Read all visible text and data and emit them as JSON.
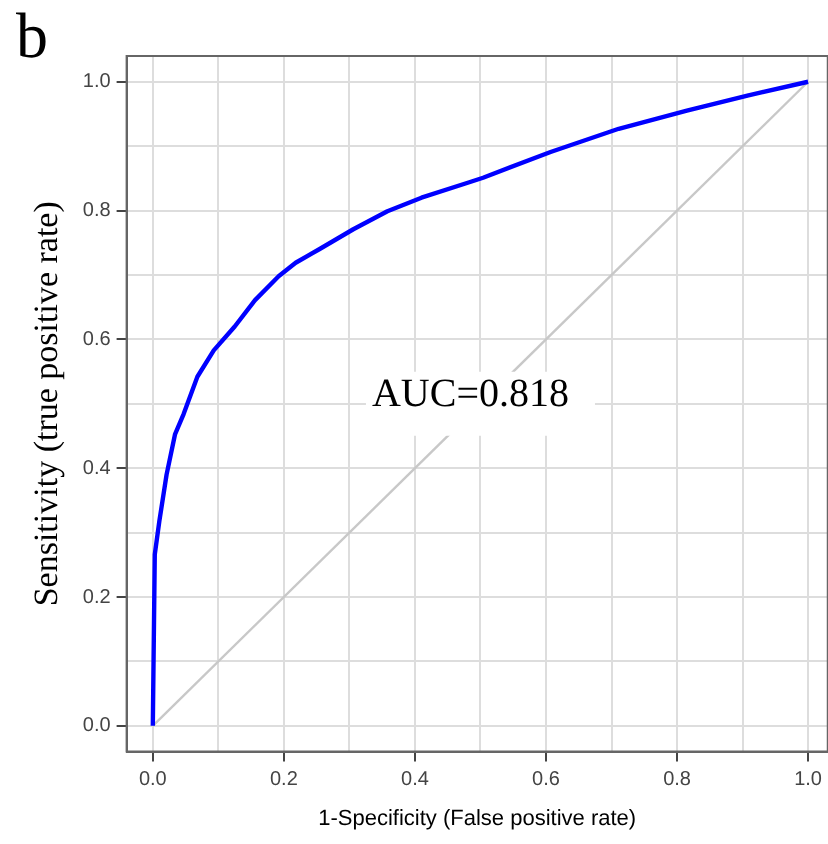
{
  "chart_data": {
    "type": "line",
    "xlabel": "1-Specificity (False positive rate)",
    "ylabel": "Sensitivity (true positive rate)",
    "annotations": [
      "b",
      "AUC=0.818"
    ],
    "xlim": [
      -0.04,
      1.03
    ],
    "ylim": [
      -0.04,
      1.04
    ],
    "xticks": [
      {
        "value": 0,
        "label": "0.0"
      },
      {
        "value": 0.1,
        "label": null
      },
      0.2,
      {
        "value": 0.3,
        "label": null
      },
      0.4,
      {
        "value": 0.5,
        "label": null
      },
      0.6,
      {
        "value": 0.7,
        "label": null
      },
      0.8,
      {
        "value": 0.9,
        "label": null
      },
      {
        "value": 1,
        "label": "1.0"
      }
    ],
    "yticks": [
      {
        "value": 0,
        "label": "0.0"
      },
      {
        "value": 0.1,
        "label": null
      },
      0.2,
      {
        "value": 0.3,
        "label": null
      },
      0.4,
      {
        "value": 0.5,
        "label": null
      },
      0.6,
      {
        "value": 0.7,
        "label": null
      },
      0.8,
      {
        "value": 0.9,
        "label": null
      },
      {
        "value": 1,
        "label": "1.0"
      }
    ],
    "grid": true,
    "legend": false,
    "marker": "none",
    "line_style": "solid",
    "series": [
      {
        "color": "#0000ff",
        "x": [
          0,
          0.003,
          0.01,
          0.021,
          0.034,
          0.047,
          0.068,
          0.093,
          0.125,
          0.156,
          0.192,
          0.218,
          0.254,
          0.306,
          0.358,
          0.41,
          0.483,
          0.504,
          0.607,
          0.711,
          0.815,
          0.909,
          1.0
        ],
        "values": [
          0,
          0.266,
          0.318,
          0.39,
          0.453,
          0.484,
          0.542,
          0.583,
          0.62,
          0.661,
          0.698,
          0.719,
          0.74,
          0.771,
          0.799,
          0.82,
          0.844,
          0.851,
          0.891,
          0.927,
          0.955,
          0.979,
          1.0
        ]
      },
      {
        "color": "#c8c8c8",
        "x": [
          0,
          1
        ],
        "values": [
          0,
          1
        ]
      }
    ]
  }
}
